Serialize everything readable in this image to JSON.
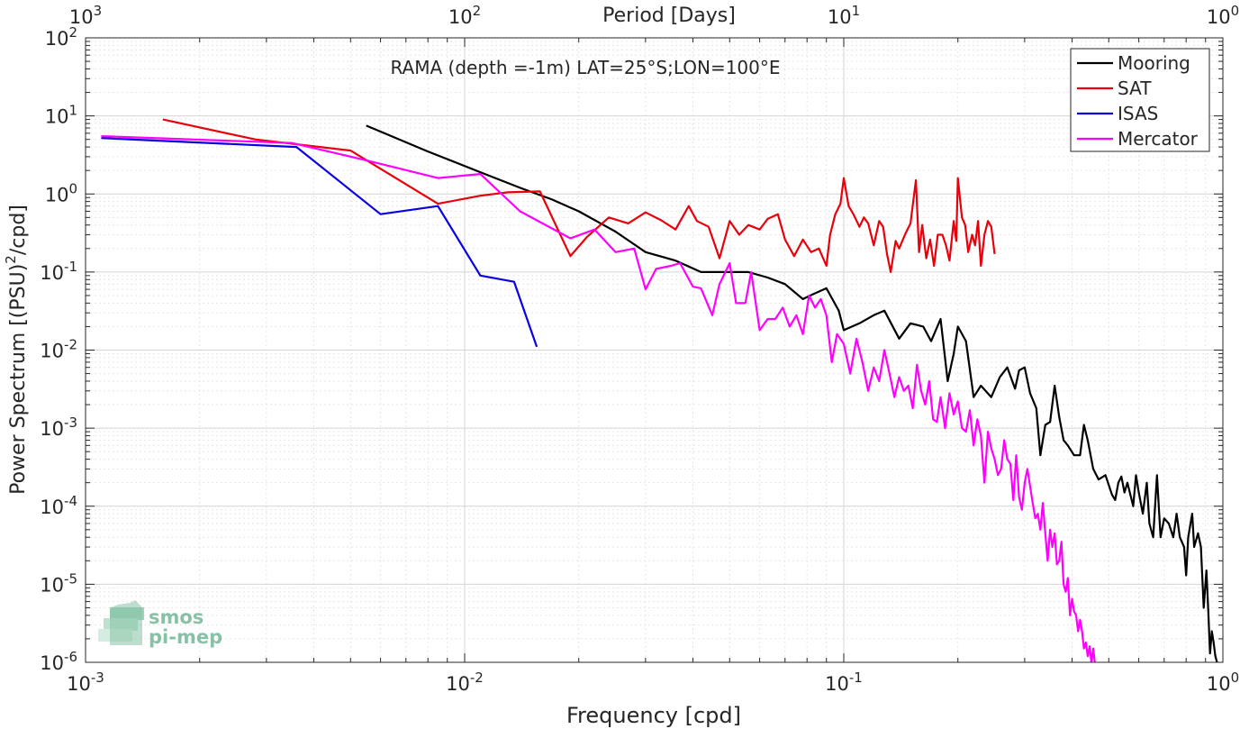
{
  "chart_data": {
    "type": "line",
    "title": "RAMA (depth =-1m) LAT=25°S;LON=100°E",
    "xlabel": "Frequency [cpd]",
    "ylabel_main": "Power Spectrum [(PSU)",
    "ylabel_sup": "2",
    "ylabel_tail": "/cpd]",
    "top_axis_label": "Period [Days]",
    "x_scale": "log",
    "y_scale": "log",
    "xlim": [
      0.001,
      1
    ],
    "ylim": [
      1e-06,
      100
    ],
    "grid": true,
    "legend_position": "top-right",
    "x_ticks": [
      {
        "base": "10",
        "exp": "-3"
      },
      {
        "base": "10",
        "exp": "-2"
      },
      {
        "base": "10",
        "exp": "-1"
      },
      {
        "base": "10",
        "exp": "0"
      }
    ],
    "y_ticks": [
      {
        "base": "10",
        "exp": "-6"
      },
      {
        "base": "10",
        "exp": "-5"
      },
      {
        "base": "10",
        "exp": "-4"
      },
      {
        "base": "10",
        "exp": "-3"
      },
      {
        "base": "10",
        "exp": "-2"
      },
      {
        "base": "10",
        "exp": "-1"
      },
      {
        "base": "10",
        "exp": "0"
      },
      {
        "base": "10",
        "exp": "1"
      },
      {
        "base": "10",
        "exp": "2"
      }
    ],
    "top_ticks": [
      {
        "base": "10",
        "exp": "3"
      },
      {
        "base": "10",
        "exp": "2"
      },
      {
        "base": "10",
        "exp": "1"
      },
      {
        "base": "10",
        "exp": "0"
      }
    ],
    "series": [
      {
        "name": "Mooring",
        "color": "#000000",
        "points": [
          [
            0.0055,
            7.5
          ],
          [
            0.008,
            3.5
          ],
          [
            0.011,
            1.9
          ],
          [
            0.014,
            1.2
          ],
          [
            0.017,
            0.85
          ],
          [
            0.02,
            0.6
          ],
          [
            0.025,
            0.33
          ],
          [
            0.03,
            0.18
          ],
          [
            0.036,
            0.14
          ],
          [
            0.042,
            0.1
          ],
          [
            0.05,
            0.1
          ],
          [
            0.056,
            0.1
          ],
          [
            0.063,
            0.085
          ],
          [
            0.07,
            0.07
          ],
          [
            0.078,
            0.045
          ],
          [
            0.083,
            0.052
          ],
          [
            0.09,
            0.062
          ],
          [
            0.097,
            0.032
          ],
          [
            0.1,
            0.018
          ],
          [
            0.11,
            0.022
          ],
          [
            0.12,
            0.028
          ],
          [
            0.128,
            0.032
          ],
          [
            0.14,
            0.014
          ],
          [
            0.15,
            0.022
          ],
          [
            0.162,
            0.02
          ],
          [
            0.17,
            0.013
          ],
          [
            0.18,
            0.025
          ],
          [
            0.188,
            0.004
          ],
          [
            0.195,
            0.009
          ],
          [
            0.2,
            0.02
          ],
          [
            0.21,
            0.013
          ],
          [
            0.22,
            0.0025
          ],
          [
            0.23,
            0.0035
          ],
          [
            0.245,
            0.0025
          ],
          [
            0.258,
            0.0045
          ],
          [
            0.27,
            0.006
          ],
          [
            0.283,
            0.0032
          ],
          [
            0.29,
            0.0055
          ],
          [
            0.3,
            0.006
          ],
          [
            0.31,
            0.0028
          ],
          [
            0.322,
            0.0018
          ],
          [
            0.33,
            0.00045
          ],
          [
            0.34,
            0.0011
          ],
          [
            0.35,
            0.0012
          ],
          [
            0.36,
            0.0035
          ],
          [
            0.37,
            0.0014
          ],
          [
            0.38,
            0.0007
          ],
          [
            0.39,
            0.0006
          ],
          [
            0.405,
            0.00045
          ],
          [
            0.42,
            0.00045
          ],
          [
            0.43,
            0.0011
          ],
          [
            0.44,
            0.0007
          ],
          [
            0.455,
            0.0003
          ],
          [
            0.47,
            0.00022
          ],
          [
            0.49,
            0.00025
          ],
          [
            0.51,
            0.00014
          ],
          [
            0.52,
            0.00012
          ],
          [
            0.53,
            0.0002
          ],
          [
            0.54,
            0.00024
          ],
          [
            0.55,
            0.00015
          ],
          [
            0.56,
            0.0002
          ],
          [
            0.58,
            0.0001
          ],
          [
            0.59,
            0.00025
          ],
          [
            0.6,
            0.00015
          ],
          [
            0.615,
            8e-05
          ],
          [
            0.63,
            0.0002
          ],
          [
            0.64,
            6e-05
          ],
          [
            0.655,
            4e-05
          ],
          [
            0.67,
            0.00025
          ],
          [
            0.685,
            4e-05
          ],
          [
            0.7,
            7e-05
          ],
          [
            0.72,
            6e-05
          ],
          [
            0.74,
            4e-05
          ],
          [
            0.755,
            8e-05
          ],
          [
            0.77,
            4e-05
          ],
          [
            0.79,
            3e-05
          ],
          [
            0.8,
            1.3e-05
          ],
          [
            0.81,
            4e-05
          ],
          [
            0.83,
            8e-05
          ],
          [
            0.84,
            3e-05
          ],
          [
            0.86,
            4.5e-05
          ],
          [
            0.875,
            3e-05
          ],
          [
            0.89,
            5e-06
          ],
          [
            0.905,
            1.5e-05
          ],
          [
            0.915,
            4.5e-06
          ],
          [
            0.925,
            1.3e-06
          ],
          [
            0.935,
            2.5e-06
          ],
          [
            0.945,
            1.8e-06
          ],
          [
            0.955,
            1.2e-06
          ],
          [
            0.965,
            1e-06
          ]
        ]
      },
      {
        "name": "SAT",
        "color": "#e8000b",
        "points": [
          [
            0.0016,
            9
          ],
          [
            0.0028,
            5
          ],
          [
            0.005,
            3.6
          ],
          [
            0.0085,
            0.75
          ],
          [
            0.011,
            0.95
          ],
          [
            0.013,
            1.05
          ],
          [
            0.0158,
            1.08
          ],
          [
            0.019,
            0.16
          ],
          [
            0.021,
            0.28
          ],
          [
            0.024,
            0.5
          ],
          [
            0.027,
            0.42
          ],
          [
            0.03,
            0.58
          ],
          [
            0.033,
            0.46
          ],
          [
            0.036,
            0.35
          ],
          [
            0.039,
            0.7
          ],
          [
            0.041,
            0.45
          ],
          [
            0.044,
            0.38
          ],
          [
            0.047,
            0.15
          ],
          [
            0.05,
            0.45
          ],
          [
            0.053,
            0.3
          ],
          [
            0.056,
            0.4
          ],
          [
            0.06,
            0.35
          ],
          [
            0.063,
            0.48
          ],
          [
            0.067,
            0.55
          ],
          [
            0.07,
            0.26
          ],
          [
            0.074,
            0.16
          ],
          [
            0.078,
            0.26
          ],
          [
            0.082,
            0.18
          ],
          [
            0.086,
            0.2
          ],
          [
            0.09,
            0.12
          ],
          [
            0.092,
            0.3
          ],
          [
            0.095,
            0.55
          ],
          [
            0.098,
            0.75
          ],
          [
            0.1,
            1.6
          ],
          [
            0.103,
            0.7
          ],
          [
            0.106,
            0.55
          ],
          [
            0.11,
            0.38
          ],
          [
            0.113,
            0.5
          ],
          [
            0.116,
            0.42
          ],
          [
            0.12,
            0.22
          ],
          [
            0.124,
            0.45
          ],
          [
            0.127,
            0.38
          ],
          [
            0.13,
            0.17
          ],
          [
            0.133,
            0.1
          ],
          [
            0.137,
            0.25
          ],
          [
            0.14,
            0.2
          ],
          [
            0.145,
            0.3
          ],
          [
            0.15,
            0.42
          ],
          [
            0.155,
            1.5
          ],
          [
            0.158,
            0.18
          ],
          [
            0.161,
            0.4
          ],
          [
            0.165,
            0.15
          ],
          [
            0.169,
            0.26
          ],
          [
            0.173,
            0.12
          ],
          [
            0.177,
            0.3
          ],
          [
            0.182,
            0.3
          ],
          [
            0.186,
            0.22
          ],
          [
            0.19,
            0.14
          ],
          [
            0.195,
            0.45
          ],
          [
            0.198,
            0.25
          ],
          [
            0.2,
            1.6
          ],
          [
            0.205,
            0.5
          ],
          [
            0.209,
            0.4
          ],
          [
            0.213,
            0.18
          ],
          [
            0.218,
            0.3
          ],
          [
            0.222,
            0.22
          ],
          [
            0.226,
            0.45
          ],
          [
            0.23,
            0.12
          ],
          [
            0.235,
            0.3
          ],
          [
            0.24,
            0.45
          ],
          [
            0.245,
            0.38
          ],
          [
            0.25,
            0.17
          ]
        ]
      },
      {
        "name": "ISAS",
        "color": "#0a00e6",
        "points": [
          [
            0.0011,
            5.2
          ],
          [
            0.0036,
            4
          ],
          [
            0.006,
            0.55
          ],
          [
            0.0085,
            0.7
          ],
          [
            0.011,
            0.09
          ],
          [
            0.0135,
            0.075
          ],
          [
            0.0155,
            0.011
          ]
        ]
      },
      {
        "name": "Mercator",
        "color": "#ff00ff",
        "points": [
          [
            0.0011,
            5.5
          ],
          [
            0.0035,
            4.5
          ],
          [
            0.0055,
            2.7
          ],
          [
            0.0085,
            1.6
          ],
          [
            0.011,
            1.8
          ],
          [
            0.014,
            0.6
          ],
          [
            0.019,
            0.27
          ],
          [
            0.022,
            0.35
          ],
          [
            0.025,
            0.18
          ],
          [
            0.028,
            0.2
          ],
          [
            0.03,
            0.06
          ],
          [
            0.032,
            0.11
          ],
          [
            0.035,
            0.12
          ],
          [
            0.037,
            0.13
          ],
          [
            0.04,
            0.065
          ],
          [
            0.042,
            0.062
          ],
          [
            0.045,
            0.028
          ],
          [
            0.047,
            0.07
          ],
          [
            0.05,
            0.13
          ],
          [
            0.052,
            0.04
          ],
          [
            0.055,
            0.04
          ],
          [
            0.057,
            0.1
          ],
          [
            0.06,
            0.018
          ],
          [
            0.063,
            0.025
          ],
          [
            0.066,
            0.025
          ],
          [
            0.069,
            0.035
          ],
          [
            0.072,
            0.02
          ],
          [
            0.075,
            0.028
          ],
          [
            0.078,
            0.016
          ],
          [
            0.081,
            0.05
          ],
          [
            0.084,
            0.035
          ],
          [
            0.087,
            0.045
          ],
          [
            0.09,
            0.028
          ],
          [
            0.093,
            0.007
          ],
          [
            0.096,
            0.016
          ],
          [
            0.1,
            0.012
          ],
          [
            0.104,
            0.005
          ],
          [
            0.108,
            0.014
          ],
          [
            0.112,
            0.007
          ],
          [
            0.116,
            0.003
          ],
          [
            0.12,
            0.006
          ],
          [
            0.124,
            0.004
          ],
          [
            0.128,
            0.01
          ],
          [
            0.132,
            0.005
          ],
          [
            0.136,
            0.0025
          ],
          [
            0.14,
            0.0045
          ],
          [
            0.144,
            0.003
          ],
          [
            0.148,
            0.0035
          ],
          [
            0.152,
            0.0018
          ],
          [
            0.156,
            0.0065
          ],
          [
            0.16,
            0.003
          ],
          [
            0.164,
            0.002
          ],
          [
            0.168,
            0.004
          ],
          [
            0.172,
            0.0013
          ],
          [
            0.176,
            0.0012
          ],
          [
            0.18,
            0.0025
          ],
          [
            0.185,
            0.001
          ],
          [
            0.19,
            0.0028
          ],
          [
            0.195,
            0.0015
          ],
          [
            0.2,
            0.0022
          ],
          [
            0.205,
            0.001
          ],
          [
            0.21,
            0.0009
          ],
          [
            0.215,
            0.0017
          ],
          [
            0.22,
            0.0006
          ],
          [
            0.225,
            0.0013
          ],
          [
            0.23,
            0.0008
          ],
          [
            0.235,
            0.0002
          ],
          [
            0.24,
            0.0009
          ],
          [
            0.245,
            0.00055
          ],
          [
            0.25,
            0.0004
          ],
          [
            0.255,
            0.00025
          ],
          [
            0.26,
            0.0003
          ],
          [
            0.265,
            0.0007
          ],
          [
            0.27,
            0.0004
          ],
          [
            0.275,
            0.00035
          ],
          [
            0.28,
            0.00012
          ],
          [
            0.285,
            0.00045
          ],
          [
            0.29,
            0.00013
          ],
          [
            0.295,
            9e-05
          ],
          [
            0.3,
            0.0002
          ],
          [
            0.305,
            0.0003
          ],
          [
            0.31,
            0.00018
          ],
          [
            0.315,
            0.00011
          ],
          [
            0.32,
            7e-05
          ],
          [
            0.325,
            8e-05
          ],
          [
            0.33,
            5e-05
          ],
          [
            0.335,
            0.00011
          ],
          [
            0.34,
            4.5e-05
          ],
          [
            0.345,
            2e-05
          ],
          [
            0.35,
            5e-05
          ],
          [
            0.355,
            3e-05
          ],
          [
            0.36,
            4.5e-05
          ],
          [
            0.365,
            1.8e-05
          ],
          [
            0.37,
            2e-05
          ],
          [
            0.375,
            3.5e-05
          ],
          [
            0.38,
            1e-05
          ],
          [
            0.385,
            8e-06
          ],
          [
            0.39,
            1.2e-05
          ],
          [
            0.395,
            4e-06
          ],
          [
            0.4,
            6.5e-06
          ],
          [
            0.405,
            4.5e-06
          ],
          [
            0.41,
            4e-06
          ],
          [
            0.415,
            2.5e-06
          ],
          [
            0.42,
            3.5e-06
          ],
          [
            0.425,
            2.5e-06
          ],
          [
            0.43,
            1.5e-06
          ],
          [
            0.435,
            1.8e-06
          ],
          [
            0.44,
            1.2e-06
          ],
          [
            0.445,
            1.6e-06
          ],
          [
            0.45,
            1e-06
          ],
          [
            0.455,
            1.5e-06
          ],
          [
            0.46,
            9.5e-07
          ]
        ]
      }
    ]
  },
  "watermark": {
    "line1": "smos",
    "line2": "pi-mep"
  }
}
